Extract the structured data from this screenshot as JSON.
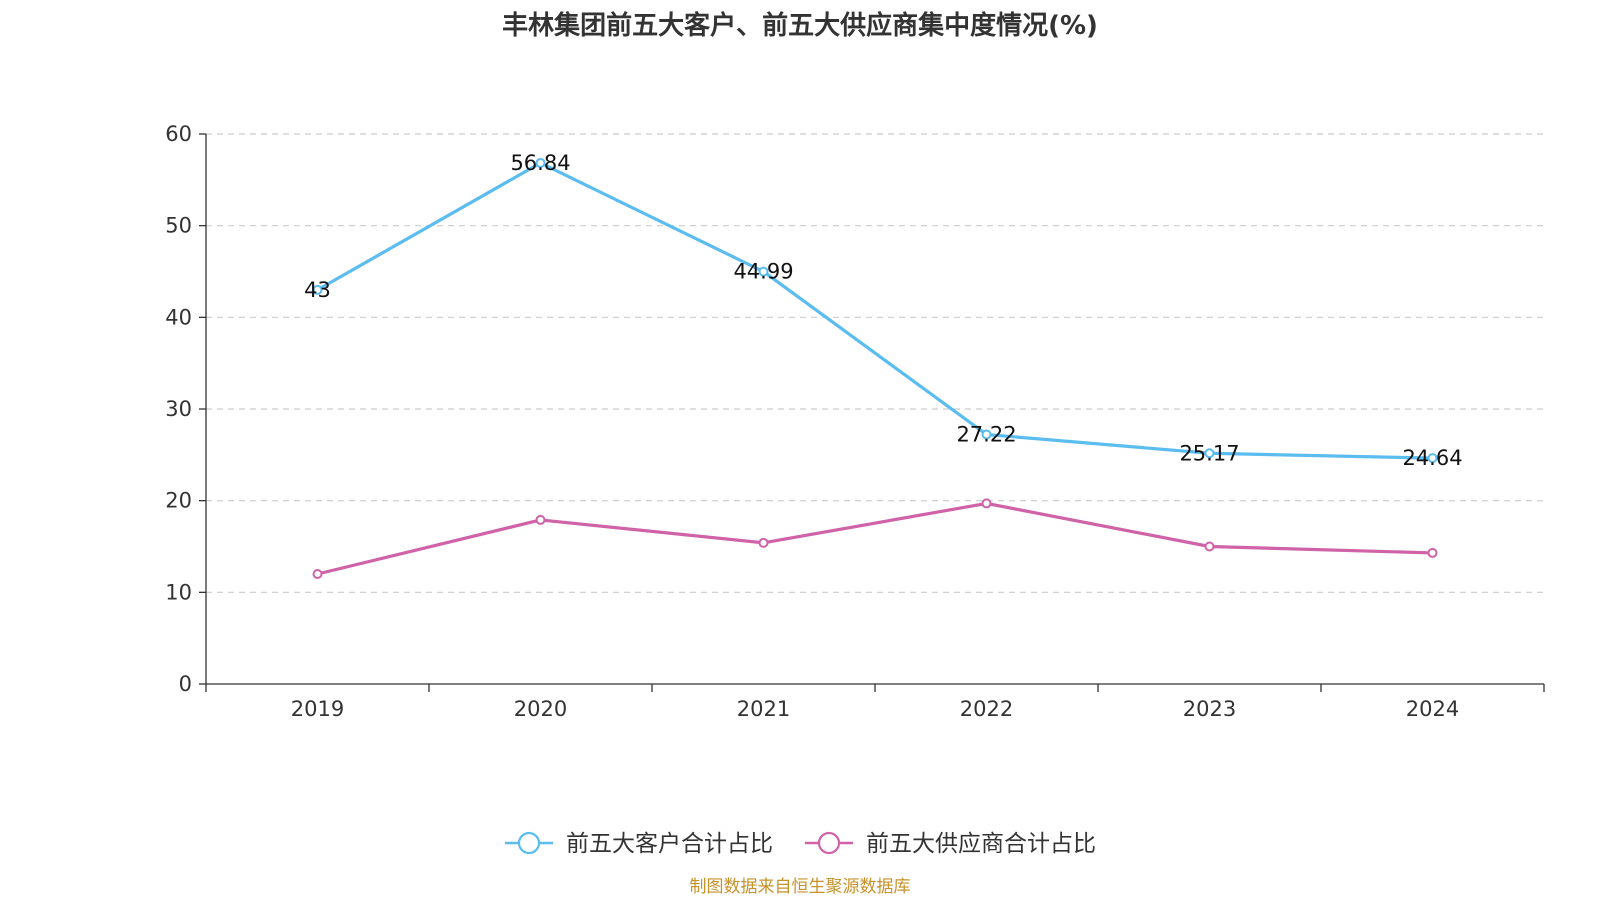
{
  "chart_data": {
    "type": "line",
    "title": "丰林集团前五大客户、前五大供应商集中度情况(%)",
    "categories": [
      "2019",
      "2020",
      "2021",
      "2022",
      "2023",
      "2024"
    ],
    "ylim": [
      0,
      60
    ],
    "yticks": [
      "0",
      "10",
      "20",
      "30",
      "40",
      "50",
      "60"
    ],
    "grid": true,
    "legend_position": "bottom-center",
    "series": [
      {
        "name": "前五大客户合计占比",
        "color": "#5bbcf0",
        "values": [
          43,
          56.84,
          44.99,
          27.22,
          25.17,
          24.64
        ],
        "labels": [
          "43",
          "56.84",
          "44.99",
          "27.22",
          "25.17",
          "24.64"
        ]
      },
      {
        "name": "前五大供应商合计占比",
        "color": "#d062a8",
        "values": [
          12.0,
          17.9,
          15.4,
          19.7,
          15.0,
          14.3
        ]
      }
    ],
    "source": "制图数据来自恒生聚源数据库"
  }
}
